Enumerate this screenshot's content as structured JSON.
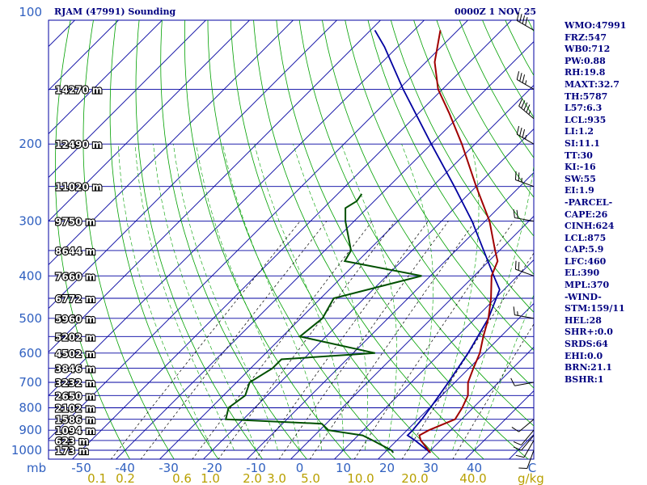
{
  "header": {
    "station": "RJAM (47991) Sounding",
    "datetime": "0000Z  1 NOV 25"
  },
  "stats": [
    "WMO:47991",
    "FRZ:547",
    "WB0:712",
    "PW:0.88",
    "RH:19.8",
    "MAXT:32.7",
    "TH:5787",
    "L57:6.3",
    "LCL:935",
    "LI:1.2",
    "SI:11.1",
    "TT:30",
    "KI:-16",
    "SW:55",
    "EI:1.9",
    "-PARCEL-",
    "CAPE:26",
    "CINH:624",
    "LCL:875",
    "CAP:5.9",
    "LFC:460",
    "EL:390",
    "MPL:370",
    "-WIND-",
    "STM:159/11",
    "HEL:28",
    "SHR+:0.0",
    "SRDS:64",
    "EHI:0.0",
    "BRN:21.1",
    "BSHR:1"
  ],
  "colors": {
    "isobar": "#0000a0",
    "isotherm": "#0000a0",
    "dry_adiabat": "#00a000",
    "moist_adiabat": "#00a000",
    "mixing_ratio": "#000000",
    "temperature": "#a00000",
    "dewpoint": "#005000",
    "parcel": "#0000a0",
    "pressure_label": "#3060c0",
    "temp_label": "#3060c0",
    "mix_label": "#b8a000",
    "height_label": "#ffffff"
  },
  "chart_data": {
    "type": "skew-t log-p sounding",
    "pressure_axis_label": "mb",
    "pressure_ticks": [
      100,
      200,
      300,
      400,
      500,
      600,
      700,
      800,
      900,
      1000
    ],
    "temperature_axis_label": "C",
    "temperature_ticks": [
      -50,
      -40,
      -30,
      -20,
      -10,
      0,
      10,
      20,
      30,
      40
    ],
    "mixing_ratio_label": "g/kg",
    "mixing_ratio_ticks": [
      "0.1",
      "0.2",
      "0.6",
      "1.0",
      "2.0",
      "3.0",
      "5.0",
      "10.0",
      "20.0",
      "40.0"
    ],
    "height_levels": [
      {
        "p": 150,
        "label": "14270 m"
      },
      {
        "p": 200,
        "label": "12490 m"
      },
      {
        "p": 250,
        "label": "11020 m"
      },
      {
        "p": 300,
        "label": "9750 m"
      },
      {
        "p": 350,
        "label": "8644 m"
      },
      {
        "p": 400,
        "label": "7660 m"
      },
      {
        "p": 450,
        "label": "6772 m"
      },
      {
        "p": 500,
        "label": "5960 m"
      },
      {
        "p": 550,
        "label": "5202 m"
      },
      {
        "p": 600,
        "label": "4502 m"
      },
      {
        "p": 650,
        "label": "3846 m"
      },
      {
        "p": 700,
        "label": "3232 m"
      },
      {
        "p": 750,
        "label": "2650 m"
      },
      {
        "p": 800,
        "label": "2102 m"
      },
      {
        "p": 850,
        "label": "1586 m"
      },
      {
        "p": 900,
        "label": "1094 m"
      },
      {
        "p": 950,
        "label": "623 m"
      },
      {
        "p": 1000,
        "label": "173 m"
      }
    ],
    "temperature_profile": [
      [
        1013,
        30.5
      ],
      [
        1000,
        29.5
      ],
      [
        950,
        25.5
      ],
      [
        925,
        24
      ],
      [
        900,
        25
      ],
      [
        850,
        28.5
      ],
      [
        800,
        27.5
      ],
      [
        750,
        26
      ],
      [
        700,
        23
      ],
      [
        650,
        21
      ],
      [
        600,
        19
      ],
      [
        550,
        16
      ],
      [
        500,
        13
      ],
      [
        450,
        9
      ],
      [
        400,
        4
      ],
      [
        370,
        2
      ],
      [
        350,
        -1
      ],
      [
        300,
        -9
      ],
      [
        250,
        -20
      ],
      [
        200,
        -33
      ],
      [
        170,
        -43
      ],
      [
        150,
        -51
      ],
      [
        130,
        -58
      ],
      [
        110,
        -64
      ]
    ],
    "dewpoint_profile": [
      [
        1013,
        22
      ],
      [
        1000,
        21
      ],
      [
        950,
        14.5
      ],
      [
        925,
        11
      ],
      [
        900,
        2
      ],
      [
        870,
        -1
      ],
      [
        850,
        -24
      ],
      [
        800,
        -26
      ],
      [
        750,
        -25
      ],
      [
        700,
        -27
      ],
      [
        650,
        -25
      ],
      [
        620,
        -25
      ],
      [
        600,
        -5
      ],
      [
        550,
        -26
      ],
      [
        500,
        -25
      ],
      [
        450,
        -27
      ],
      [
        400,
        -12
      ],
      [
        370,
        -33
      ],
      [
        350,
        -34
      ],
      [
        300,
        -42
      ],
      [
        280,
        -45
      ],
      [
        270,
        -44
      ],
      [
        260,
        -44.5
      ]
    ],
    "parcel_profile": [
      [
        1013,
        30.5
      ],
      [
        950,
        24.2
      ],
      [
        925,
        21.3
      ],
      [
        900,
        21.3
      ],
      [
        850,
        20.9
      ],
      [
        800,
        20.2
      ],
      [
        700,
        18.5
      ],
      [
        600,
        16.3
      ],
      [
        500,
        13
      ],
      [
        430,
        9
      ],
      [
        400,
        4.5
      ],
      [
        300,
        -13
      ],
      [
        250,
        -25
      ],
      [
        200,
        -40
      ],
      [
        150,
        -59
      ],
      [
        120,
        -73
      ],
      [
        110,
        -79
      ]
    ],
    "wind_barbs": [
      {
        "p": 110,
        "dir": 300,
        "kt": 40
      },
      {
        "p": 150,
        "dir": 300,
        "kt": 35
      },
      {
        "p": 175,
        "dir": 310,
        "kt": 45
      },
      {
        "p": 200,
        "dir": 300,
        "kt": 35
      },
      {
        "p": 250,
        "dir": 290,
        "kt": 25
      },
      {
        "p": 300,
        "dir": 280,
        "kt": 20
      },
      {
        "p": 400,
        "dir": 290,
        "kt": 20
      },
      {
        "p": 500,
        "dir": 280,
        "kt": 15
      },
      {
        "p": 700,
        "dir": 260,
        "kt": 10
      },
      {
        "p": 850,
        "dir": 230,
        "kt": 10
      },
      {
        "p": 900,
        "dir": 220,
        "kt": 10
      },
      {
        "p": 925,
        "dir": 220,
        "kt": 10
      },
      {
        "p": 950,
        "dir": 210,
        "kt": 10
      },
      {
        "p": 1000,
        "dir": 200,
        "kt": 10
      }
    ]
  }
}
